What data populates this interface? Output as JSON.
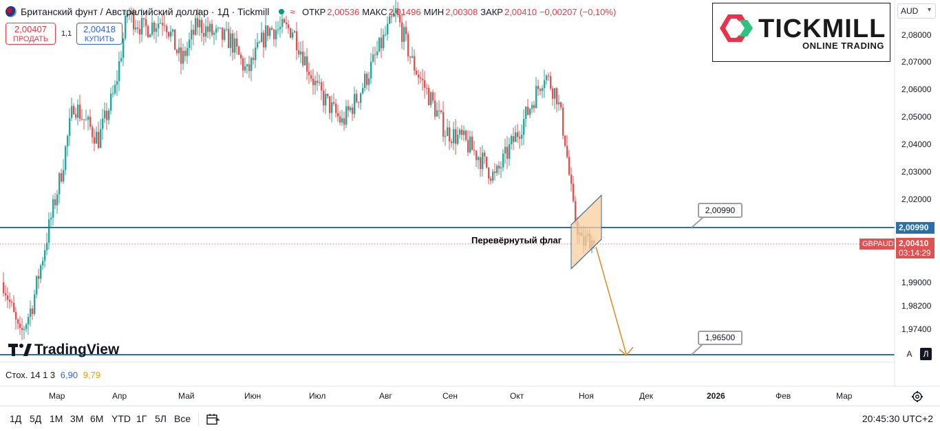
{
  "header": {
    "title": "Британский фунт / Австралийский доллар · 1Д · Tickmill",
    "open_label": "ОТКР",
    "open": "2,00536",
    "high_label": "МАКС",
    "high": "2,01496",
    "low_label": "МИН",
    "low": "2,00308",
    "close_label": "ЗАКР",
    "close": "2,00410",
    "change": "−0,00207 (−0,10%)"
  },
  "trade": {
    "sell_price": "2,00407",
    "sell_label": "ПРОДАТЬ",
    "spread": "1,1",
    "buy_price": "2,00418",
    "buy_label": "КУПИТЬ"
  },
  "logo": {
    "name": "TICKMILL",
    "tagline": "ONLINE TRADING"
  },
  "currency": "AUD",
  "watermark": "TradingView",
  "annotation": "Перевёрнутый флаг",
  "levels": {
    "resistance_label": "2,00990",
    "target_label": "1,96500",
    "symbol": "GBPAUD",
    "last_price": "2,00410",
    "countdown": "03:14:29"
  },
  "price_axis": [
    "2,08000",
    "2,07000",
    "2,06000",
    "2,05000",
    "2,04000",
    "2,03000",
    "2,02000",
    "1,99000",
    "1,98200",
    "1,97400"
  ],
  "time_axis": [
    "Мар",
    "Апр",
    "Май",
    "Июн",
    "Июл",
    "Авг",
    "Сен",
    "Окт",
    "Ноя",
    "Дек",
    "2026",
    "Фев",
    "Мар"
  ],
  "scale_buttons": {
    "auto": "A",
    "log": "Л"
  },
  "stochastic": {
    "label": "Стох. 14 1 3",
    "k": "6,90",
    "d": "9,79"
  },
  "timeframes": [
    "1Д",
    "5Д",
    "1М",
    "3М",
    "6М",
    "YTD",
    "1Г",
    "5Л",
    "Все"
  ],
  "clock": "20:45:30 UTC+2",
  "colors": {
    "up": "#26a69a",
    "down": "#e05252",
    "level": "#2a6fa8",
    "flag": "#f8cf9c",
    "arrow": "#e8861a"
  },
  "chart_data": {
    "type": "candlestick",
    "symbol": "GBPAUD",
    "interval": "1D",
    "x_axis": [
      "Мар",
      "Апр",
      "Май",
      "Июн",
      "Июл",
      "Авг",
      "Сен",
      "Окт",
      "Ноя",
      "Дек",
      "2026",
      "Фев",
      "Мар"
    ],
    "levels": [
      2.0099,
      1.965
    ],
    "flag_channel": {
      "type": "bear flag",
      "label": "Перевёрнутый флаг"
    },
    "projection": {
      "from": 2.0041,
      "to": 1.965
    },
    "waypoints": [
      [
        0,
        1.99
      ],
      [
        8,
        1.97
      ],
      [
        14,
        1.982
      ],
      [
        22,
        2.01
      ],
      [
        28,
        2.03
      ],
      [
        34,
        2.055
      ],
      [
        40,
        2.048
      ],
      [
        46,
        2.042
      ],
      [
        54,
        2.06
      ],
      [
        60,
        2.088
      ],
      [
        68,
        2.082
      ],
      [
        78,
        2.086
      ],
      [
        86,
        2.07
      ],
      [
        94,
        2.084
      ],
      [
        102,
        2.08
      ],
      [
        110,
        2.078
      ],
      [
        118,
        2.066
      ],
      [
        128,
        2.082
      ],
      [
        140,
        2.082
      ],
      [
        152,
        2.06
      ],
      [
        164,
        2.048
      ],
      [
        172,
        2.058
      ],
      [
        182,
        2.075
      ],
      [
        190,
        2.088
      ],
      [
        198,
        2.07
      ],
      [
        206,
        2.058
      ],
      [
        214,
        2.045
      ],
      [
        222,
        2.042
      ],
      [
        230,
        2.036
      ],
      [
        238,
        2.028
      ],
      [
        246,
        2.04
      ],
      [
        254,
        2.052
      ],
      [
        262,
        2.066
      ],
      [
        268,
        2.058
      ],
      [
        272,
        2.042
      ],
      [
        276,
        2.016
      ],
      [
        280,
        2.004
      ],
      [
        284,
        2.006
      ],
      [
        286,
        2.0041
      ]
    ]
  }
}
